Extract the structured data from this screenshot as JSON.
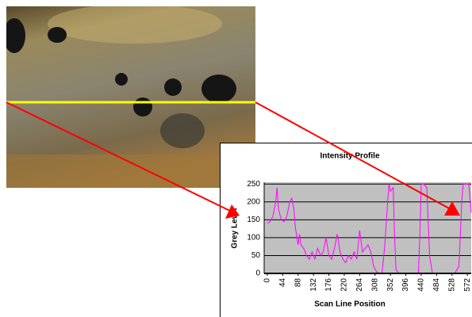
{
  "chart_data": {
    "type": "line",
    "title": "Intensity Profile",
    "x_label": "Scan Line Position",
    "y_label": "Grey Level",
    "xlim": [
      -9,
      583
    ],
    "ylim": [
      0,
      255
    ],
    "xticks": [
      0,
      44,
      88,
      132,
      176,
      220,
      264,
      308,
      352,
      396,
      440,
      484,
      528,
      572
    ],
    "yticks": [
      0,
      50,
      100,
      150,
      200,
      250
    ],
    "grid": true,
    "series": [
      {
        "color": "#ff00ff",
        "x": [
          0,
          8,
          16,
          24,
          28,
          32,
          40,
          48,
          56,
          64,
          70,
          76,
          80,
          88,
          92,
          96,
          104,
          112,
          120,
          128,
          136,
          144,
          152,
          160,
          168,
          176,
          184,
          192,
          200,
          208,
          216,
          224,
          232,
          240,
          248,
          256,
          264,
          272,
          280,
          288,
          296,
          304,
          312,
          320,
          328,
          336,
          344,
          348,
          352,
          360,
          364,
          368,
          376,
          392,
          408,
          424,
          432,
          436,
          440,
          448,
          456,
          464,
          472,
          488,
          504,
          520,
          536,
          548,
          556,
          560,
          568,
          576,
          583
        ],
        "values": [
          140,
          145,
          160,
          200,
          240,
          180,
          150,
          145,
          160,
          200,
          210,
          180,
          130,
          80,
          110,
          80,
          70,
          50,
          40,
          60,
          40,
          70,
          50,
          60,
          100,
          50,
          40,
          70,
          110,
          60,
          40,
          30,
          50,
          40,
          60,
          40,
          120,
          60,
          70,
          80,
          60,
          20,
          5,
          0,
          0,
          80,
          200,
          250,
          230,
          240,
          100,
          10,
          0,
          0,
          0,
          0,
          0,
          100,
          250,
          250,
          240,
          50,
          0,
          0,
          0,
          0,
          0,
          20,
          200,
          250,
          250,
          250,
          170
        ]
      }
    ]
  }
}
